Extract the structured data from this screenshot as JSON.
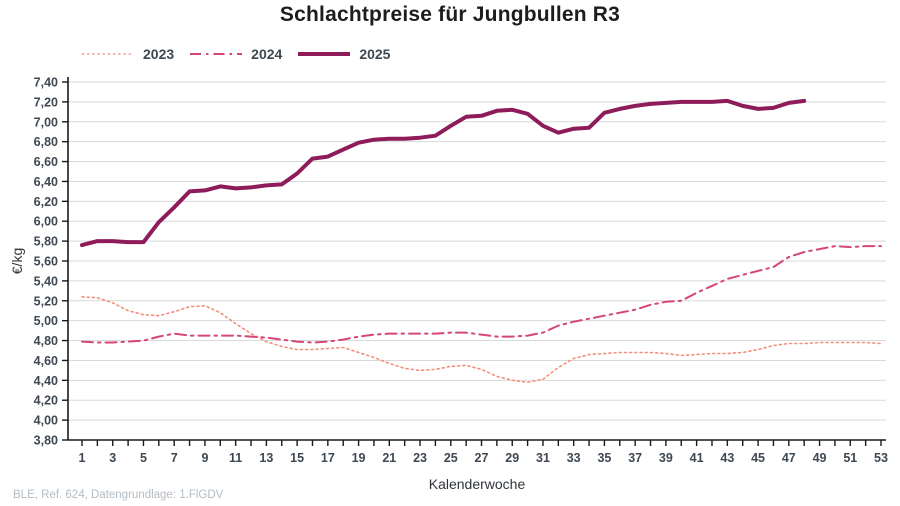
{
  "title": "Schlachtpreise für Jungbullen R3",
  "source_note": "BLE, Ref. 624, Datengrundlage: 1.FlGDV",
  "colors": {
    "series_2023": "#f2907e",
    "series_2024": "#d6457c",
    "series_2025": "#8e1c5a",
    "gridline": "#d9d9d9",
    "axis": "#1a1a1a",
    "tick_text": "#3e4853",
    "title_text": "#1d1d1b",
    "source_text": "#b3bcc4"
  },
  "chart_data": {
    "type": "line",
    "title": "Schlachtpreise für Jungbullen R3",
    "xlabel": "Kalenderwoche",
    "ylabel": "€/kg",
    "xlim": [
      1,
      53
    ],
    "ylim": [
      3.8,
      7.4
    ],
    "ytick_step": 0.2,
    "xticks": [
      1,
      3,
      5,
      7,
      9,
      11,
      13,
      15,
      17,
      19,
      21,
      23,
      25,
      27,
      29,
      31,
      33,
      35,
      37,
      39,
      41,
      43,
      45,
      47,
      49,
      51,
      53
    ],
    "grid": "horizontal",
    "legend_position": "top-left",
    "decimal_separator": ",",
    "series": [
      {
        "name": "2023",
        "style": "dotted",
        "color": "#f2907e",
        "width": 1.6,
        "x": [
          1,
          2,
          3,
          4,
          5,
          6,
          7,
          8,
          9,
          10,
          11,
          12,
          13,
          14,
          15,
          16,
          17,
          18,
          19,
          20,
          21,
          22,
          23,
          24,
          25,
          26,
          27,
          28,
          29,
          30,
          31,
          32,
          33,
          34,
          35,
          36,
          37,
          38,
          39,
          40,
          41,
          42,
          43,
          44,
          45,
          46,
          47,
          48,
          49,
          50,
          51,
          52,
          53
        ],
        "values": [
          5.24,
          5.23,
          5.18,
          5.1,
          5.06,
          5.05,
          5.09,
          5.14,
          5.15,
          5.08,
          4.97,
          4.87,
          4.79,
          4.74,
          4.71,
          4.71,
          4.72,
          4.73,
          4.68,
          4.63,
          4.57,
          4.52,
          4.5,
          4.51,
          4.54,
          4.55,
          4.51,
          4.44,
          4.4,
          4.38,
          4.41,
          4.53,
          4.62,
          4.66,
          4.67,
          4.68,
          4.68,
          4.68,
          4.67,
          4.65,
          4.66,
          4.67,
          4.67,
          4.68,
          4.71,
          4.75,
          4.77,
          4.77,
          4.78,
          4.78,
          4.78,
          4.78,
          4.77
        ]
      },
      {
        "name": "2024",
        "style": "dashdot",
        "color": "#d6457c",
        "width": 2,
        "x": [
          1,
          2,
          3,
          4,
          5,
          6,
          7,
          8,
          9,
          10,
          11,
          12,
          13,
          14,
          15,
          16,
          17,
          18,
          19,
          20,
          21,
          22,
          23,
          24,
          25,
          26,
          27,
          28,
          29,
          30,
          31,
          32,
          33,
          34,
          35,
          36,
          37,
          38,
          39,
          40,
          41,
          42,
          43,
          44,
          45,
          46,
          47,
          48,
          49,
          50,
          51,
          52,
          53
        ],
        "values": [
          4.79,
          4.78,
          4.78,
          4.79,
          4.8,
          4.84,
          4.87,
          4.85,
          4.85,
          4.85,
          4.85,
          4.84,
          4.83,
          4.81,
          4.79,
          4.78,
          4.79,
          4.81,
          4.84,
          4.86,
          4.87,
          4.87,
          4.87,
          4.87,
          4.88,
          4.88,
          4.86,
          4.84,
          4.84,
          4.85,
          4.88,
          4.95,
          4.99,
          5.02,
          5.05,
          5.08,
          5.11,
          5.16,
          5.19,
          5.2,
          5.28,
          5.35,
          5.42,
          5.46,
          5.5,
          5.54,
          5.64,
          5.69,
          5.72,
          5.75,
          5.74,
          5.75,
          5.75
        ]
      },
      {
        "name": "2025",
        "style": "solid",
        "color": "#8e1c5a",
        "width": 4,
        "x": [
          1,
          2,
          3,
          4,
          5,
          6,
          7,
          8,
          9,
          10,
          11,
          12,
          13,
          14,
          15,
          16,
          17,
          18,
          19,
          20,
          21,
          22,
          23,
          24,
          25,
          26,
          27,
          28,
          29,
          30,
          31,
          32,
          33,
          34,
          35,
          36,
          37,
          38,
          39,
          40,
          41,
          42,
          43,
          44,
          45,
          46,
          47,
          48
        ],
        "values": [
          5.76,
          5.8,
          5.8,
          5.79,
          5.79,
          5.99,
          6.14,
          6.3,
          6.31,
          6.35,
          6.33,
          6.34,
          6.36,
          6.37,
          6.48,
          6.63,
          6.65,
          6.72,
          6.79,
          6.82,
          6.83,
          6.83,
          6.84,
          6.86,
          6.96,
          7.05,
          7.06,
          7.11,
          7.12,
          7.08,
          6.96,
          6.89,
          6.93,
          6.94,
          7.09,
          7.13,
          7.16,
          7.18,
          7.19,
          7.2,
          7.2,
          7.2,
          7.21,
          7.16,
          7.13,
          7.14,
          7.19,
          7.21
        ]
      }
    ]
  }
}
